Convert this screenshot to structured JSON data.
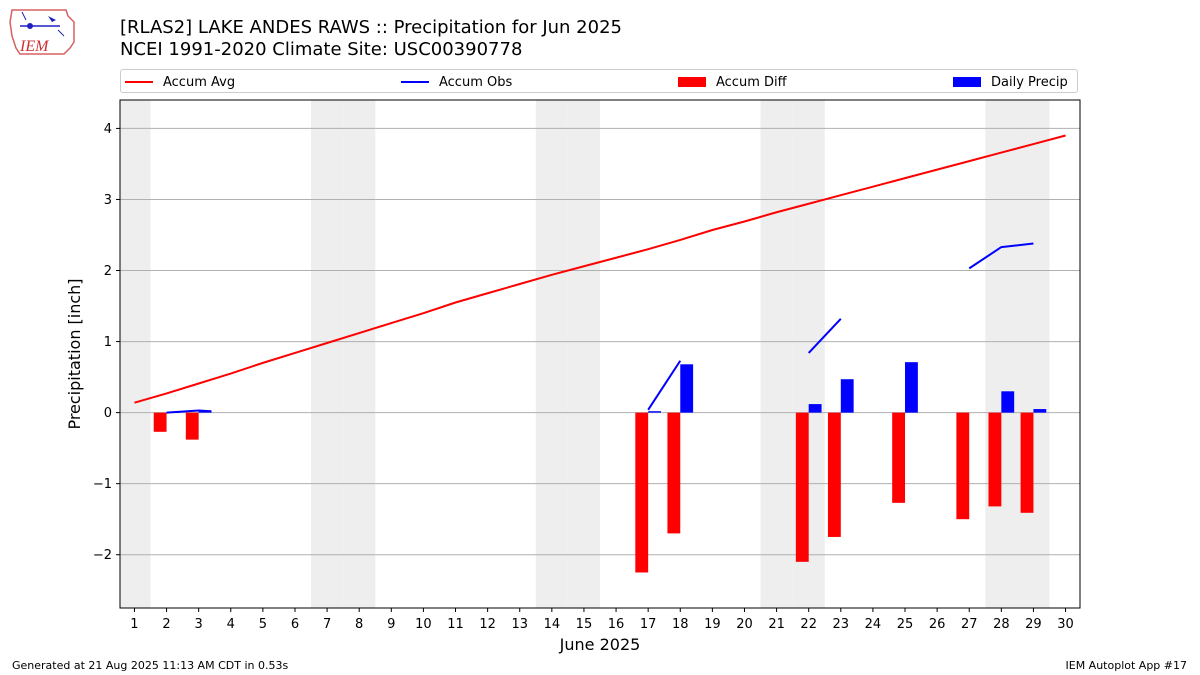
{
  "header": {
    "logo_text": "IEM",
    "title_line1": "[RLAS2] LAKE ANDES RAWS :: Precipitation for Jun 2025",
    "title_line2": "NCEI 1991-2020 Climate Site: USC00390778"
  },
  "footer": {
    "generated": "Generated at 21 Aug 2025 11:13 AM CDT in 0.53s",
    "app": "IEM Autoplot App #17"
  },
  "colors": {
    "accum_avg": "#ff0000",
    "accum_obs": "#0000ff",
    "accum_diff": "#ff0000",
    "daily_precip": "#0000ff",
    "weekend_shade": "#eeeeee",
    "grid": "#b0b0b0"
  },
  "chart_data": {
    "type": "bar",
    "title": "[RLAS2] LAKE ANDES RAWS :: Precipitation for Jun 2025",
    "xlabel": "June 2025",
    "ylabel": "Precipitation [inch]",
    "x": [
      1,
      2,
      3,
      4,
      5,
      6,
      7,
      8,
      9,
      10,
      11,
      12,
      13,
      14,
      15,
      16,
      17,
      18,
      19,
      20,
      21,
      22,
      23,
      24,
      25,
      26,
      27,
      28,
      29,
      30
    ],
    "ylim": [
      -2.75,
      4.4
    ],
    "yticks": [
      -2,
      -1,
      0,
      1,
      2,
      3,
      4
    ],
    "ytick_labels": [
      "−2",
      "−1",
      "0",
      "1",
      "2",
      "3",
      "4"
    ],
    "grid": "horizontal",
    "legend_position": "top",
    "shaded_days": [
      1,
      7,
      8,
      14,
      15,
      21,
      22,
      28,
      29
    ],
    "legend": [
      "Accum Avg",
      "Accum Obs",
      "Accum Diff",
      "Daily Precip"
    ],
    "series": [
      {
        "name": "Accum Avg",
        "type": "line",
        "x": [
          1,
          2,
          3,
          4,
          5,
          6,
          7,
          8,
          9,
          10,
          11,
          12,
          13,
          14,
          15,
          16,
          17,
          18,
          19,
          20,
          21,
          22,
          23,
          24,
          25,
          26,
          27,
          28,
          29,
          30
        ],
        "values": [
          0.14,
          0.27,
          0.41,
          0.55,
          0.7,
          0.84,
          0.98,
          1.12,
          1.26,
          1.4,
          1.55,
          1.68,
          1.81,
          1.94,
          2.06,
          2.18,
          2.3,
          2.43,
          2.57,
          2.69,
          2.82,
          2.94,
          3.06,
          3.18,
          3.3,
          3.42,
          3.54,
          3.66,
          3.78,
          3.9
        ]
      },
      {
        "name": "Accum Obs",
        "type": "line",
        "segments": [
          {
            "x": [
              2,
              3,
              3.4
            ],
            "values": [
              0.0,
              0.03,
              0.02
            ]
          },
          {
            "x": [
              17,
              18
            ],
            "values": [
              0.04,
              0.73
            ]
          },
          {
            "x": [
              22,
              23
            ],
            "values": [
              0.84,
              1.32
            ]
          },
          {
            "x": [
              27,
              28,
              29
            ],
            "values": [
              2.03,
              2.33,
              2.38
            ]
          }
        ]
      },
      {
        "name": "Accum Diff",
        "type": "bar",
        "x": [
          2,
          3,
          17,
          18,
          22,
          23,
          25,
          27,
          28,
          29
        ],
        "values": [
          -0.27,
          -0.38,
          -2.25,
          -1.7,
          -2.1,
          -1.75,
          -1.27,
          -1.5,
          -1.32,
          -1.41
        ]
      },
      {
        "name": "Daily Precip",
        "type": "bar",
        "x": [
          2,
          3,
          17,
          18,
          22,
          23,
          25,
          28,
          29
        ],
        "values": [
          0.01,
          0.02,
          0.02,
          0.68,
          0.12,
          0.47,
          0.71,
          0.3,
          0.05
        ]
      }
    ]
  }
}
